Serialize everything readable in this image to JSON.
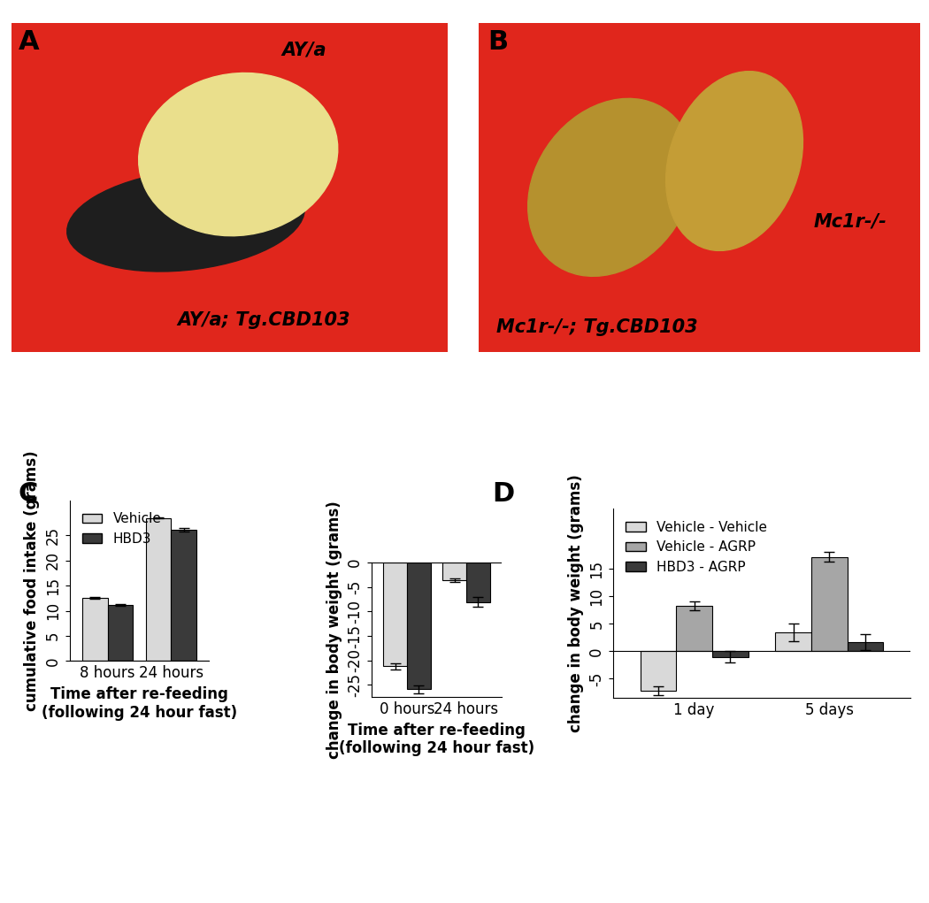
{
  "panel_labels": [
    "A",
    "B",
    "C",
    "D"
  ],
  "photos": [
    {
      "labels": [
        "AY/a",
        "AY/a; Tg.CBD103"
      ]
    },
    {
      "labels": [
        "Mc1r-/-; Tg.CBD103",
        "Mc1r-/-"
      ]
    }
  ],
  "chart_data": [
    {
      "type": "bar",
      "ylabel": "cumulative food intake (grams)",
      "xlabel": "Time after re-feeding\n(following 24 hour fast)",
      "categories": [
        "8 hours",
        "24 hours"
      ],
      "series": [
        {
          "name": "Vehicle",
          "color": "#d9d9d9",
          "values": [
            12.6,
            28.5
          ],
          "errors": [
            0.2,
            0.15
          ]
        },
        {
          "name": "HBD3",
          "color": "#3a3a3a",
          "values": [
            11.1,
            26.1
          ],
          "errors": [
            0.15,
            0.4
          ]
        }
      ],
      "ylim": [
        0,
        32
      ],
      "yticks": [
        0,
        5,
        10,
        15,
        20,
        25
      ],
      "legend": "upper left"
    },
    {
      "type": "bar",
      "ylabel": "change in body weight (grams)",
      "xlabel": "Time after re-feeding\n(following 24 hour fast)",
      "categories": [
        "0 hours",
        "24 hours"
      ],
      "series": [
        {
          "color": "#d9d9d9",
          "values": [
            -21.2,
            -3.6
          ],
          "errors": [
            0.6,
            0.4
          ]
        },
        {
          "color": "#3a3a3a",
          "values": [
            -25.9,
            -8.1
          ],
          "errors": [
            0.8,
            1.0
          ]
        }
      ],
      "ylim": [
        -27.5,
        0
      ],
      "yticks": [
        -25,
        -20,
        -15,
        -10,
        -5,
        0
      ]
    },
    {
      "type": "bar",
      "ylabel": "change in body weight (grams)",
      "categories": [
        "1 day",
        "5 days"
      ],
      "series": [
        {
          "name": "Vehicle - Vehicle",
          "color": "#d9d9d9",
          "values": [
            -7.1,
            3.5
          ],
          "errors": [
            0.8,
            1.6
          ]
        },
        {
          "name": "Vehicle - AGRP",
          "color": "#a6a6a6",
          "values": [
            8.3,
            17.2
          ],
          "errors": [
            0.8,
            0.9
          ]
        },
        {
          "name": "HBD3 - AGRP",
          "color": "#3a3a3a",
          "values": [
            -1.0,
            1.7
          ],
          "errors": [
            1.0,
            1.5
          ]
        }
      ],
      "ylim": [
        -8.5,
        26
      ],
      "yticks": [
        -5,
        0,
        5,
        10,
        15
      ],
      "legend": "upper left"
    }
  ]
}
